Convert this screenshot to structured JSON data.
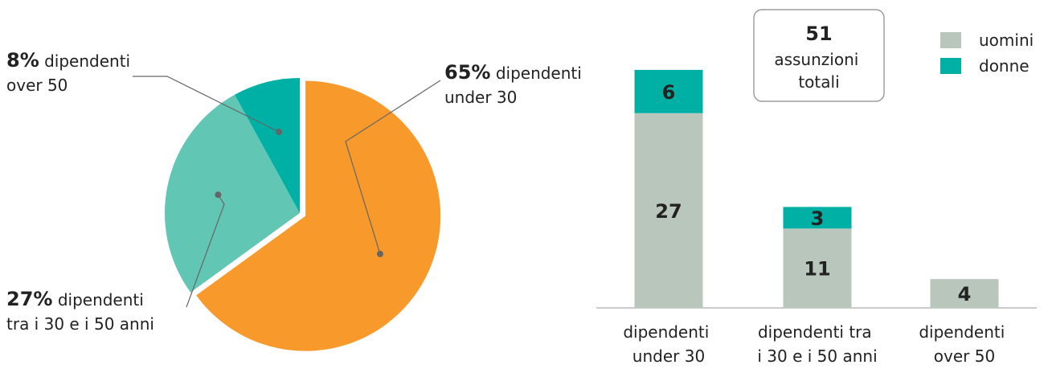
{
  "chart_data": [
    {
      "type": "pie",
      "categories": [
        "dipendenti under 30",
        "dipendenti tra i 30 e i 50 anni",
        "dipendenti over 50"
      ],
      "values": [
        65,
        27,
        8
      ],
      "value_labels": [
        "65%",
        "27%",
        "8%"
      ],
      "colors": [
        "#f7992b",
        "#62c6b4",
        "#00b0a4"
      ]
    },
    {
      "type": "stacked_bar",
      "categories": [
        "dipendenti under 30",
        "dipendenti tra i 30 e i 50 anni",
        "dipendenti over 50"
      ],
      "series": [
        {
          "name": "uomini",
          "color": "#b9c6bc",
          "values": [
            27,
            11,
            4
          ]
        },
        {
          "name": "donne",
          "color": "#00b0a4",
          "values": [
            6,
            3,
            null
          ]
        }
      ],
      "ylim": [
        0,
        35
      ],
      "annotation": {
        "value": 51,
        "text": "assunzioni totali"
      }
    }
  ]
}
